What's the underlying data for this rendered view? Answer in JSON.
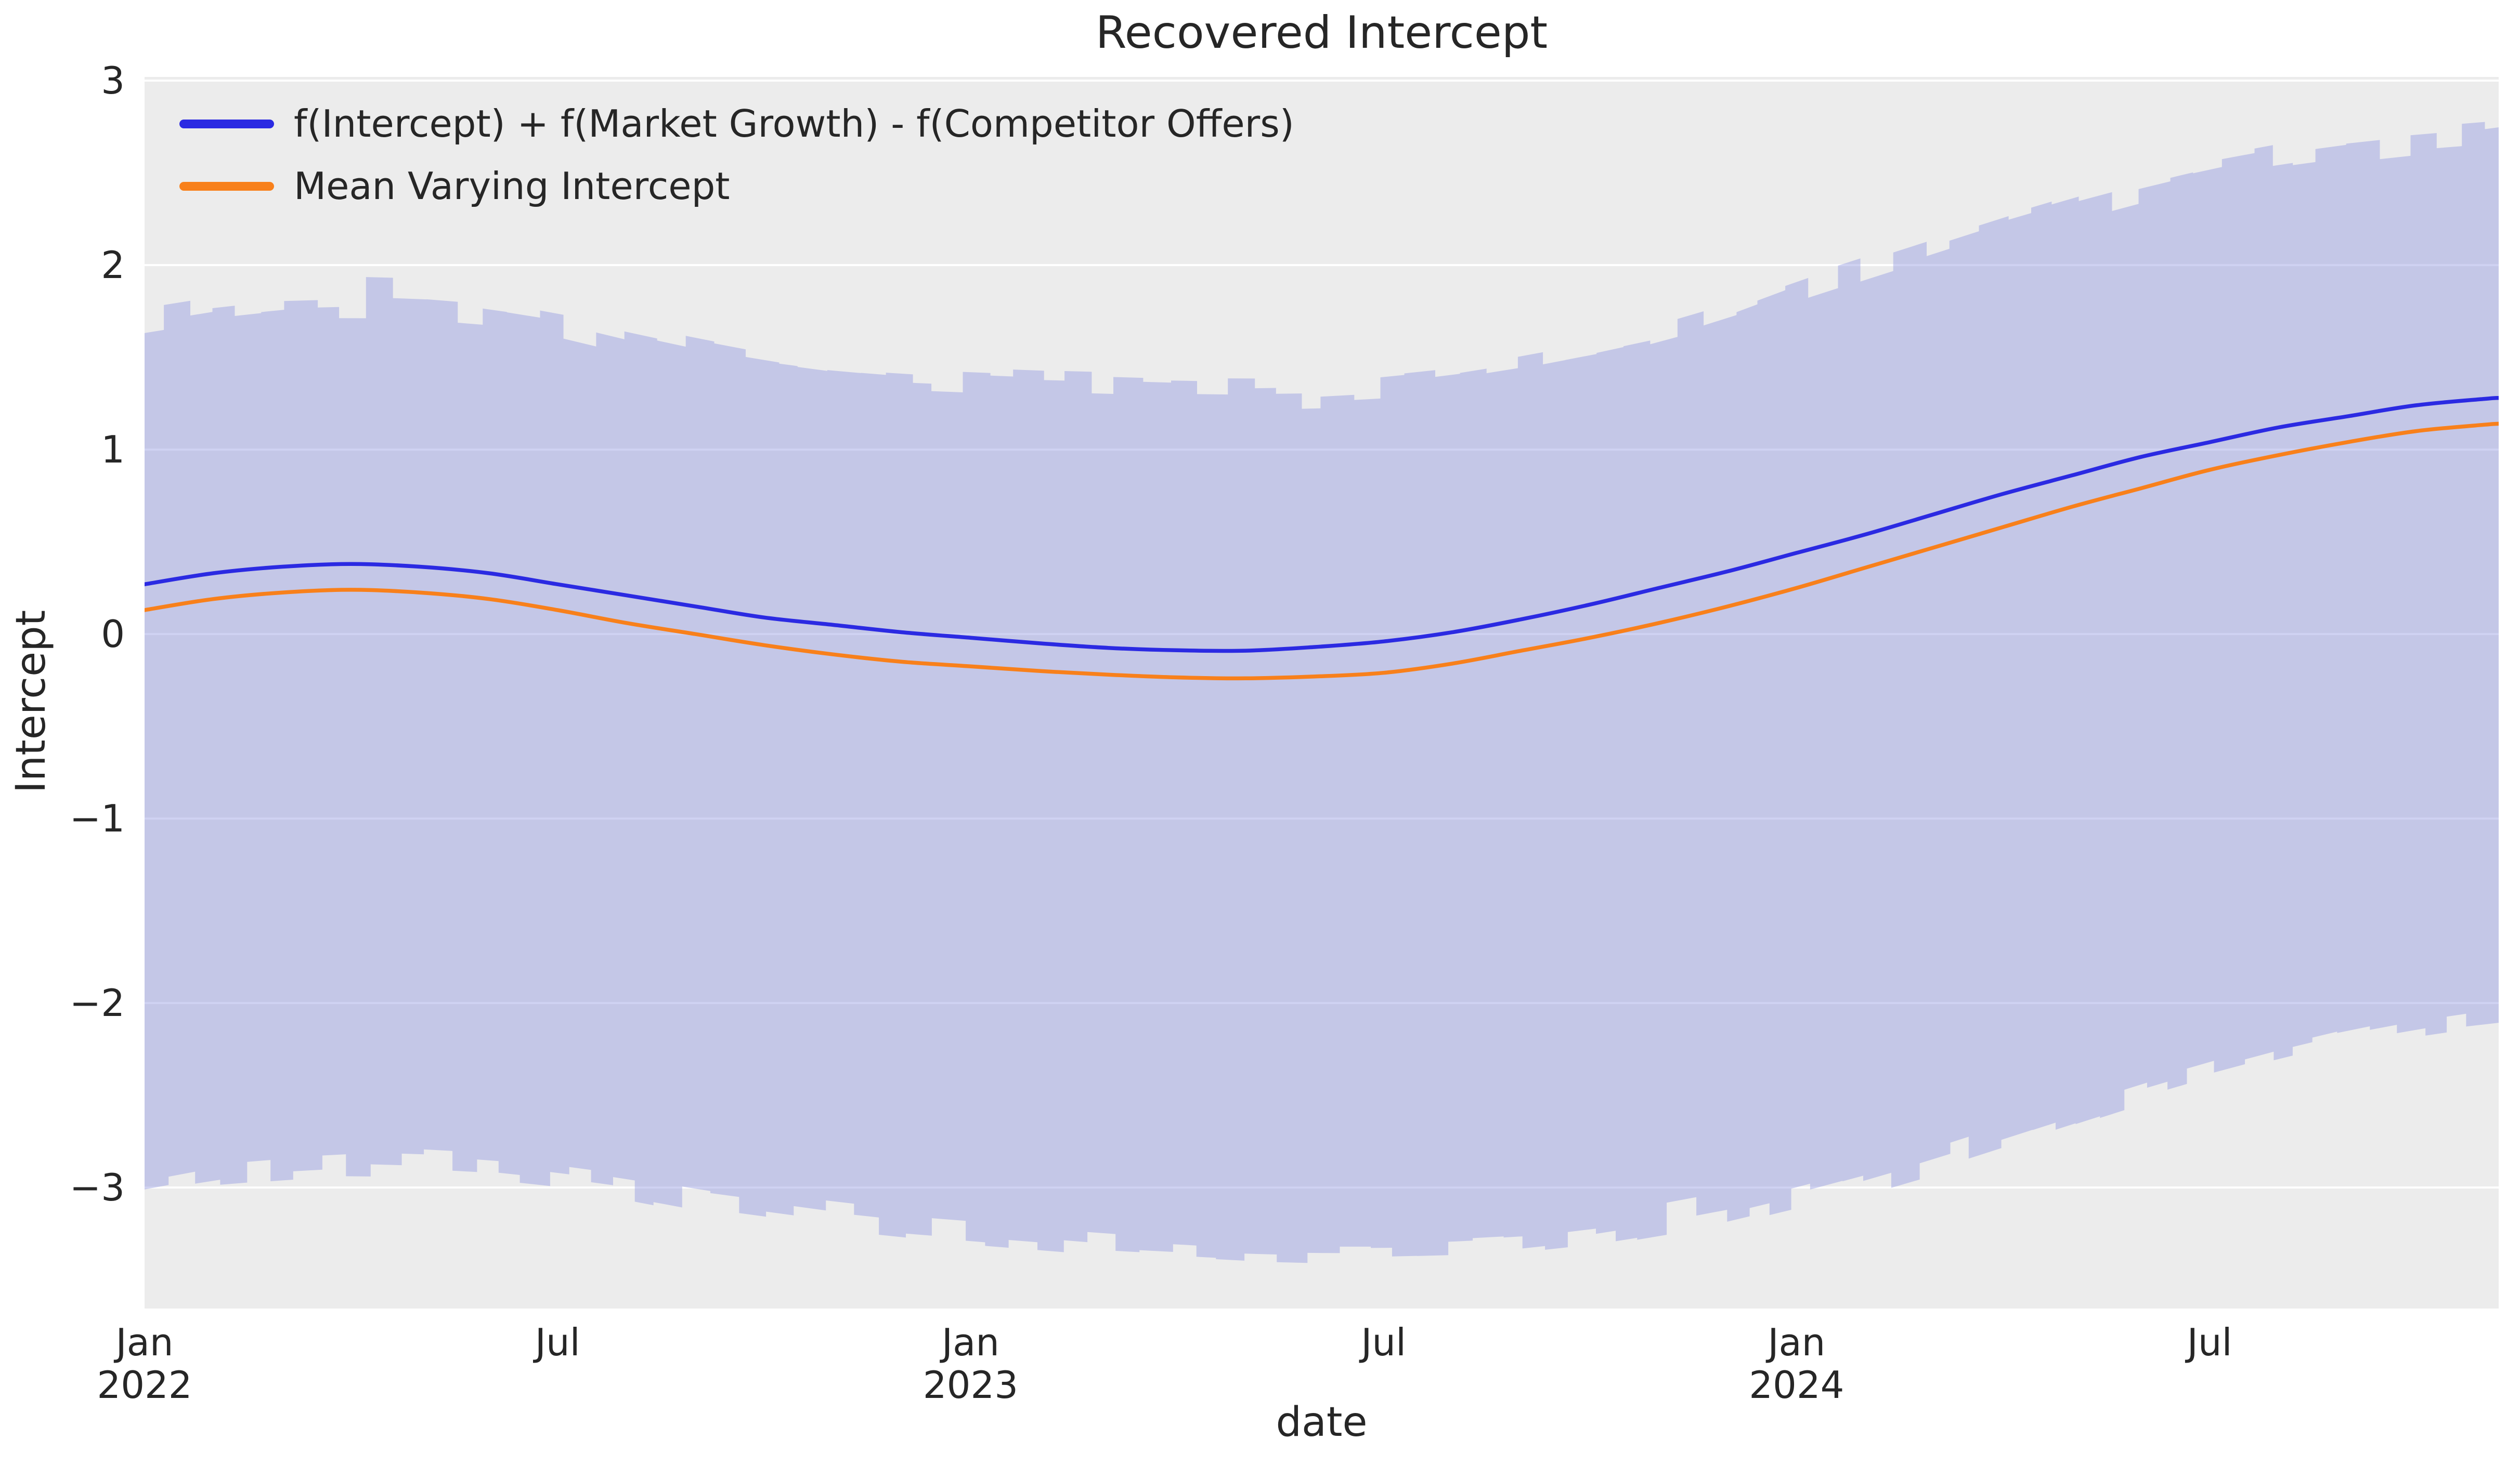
{
  "title": "Recovered Intercept",
  "axes": {
    "xlabel": "date",
    "ylabel": "Intercept",
    "y_tick_labels": [
      "3",
      "2",
      "1",
      "0",
      "−1",
      "−2",
      "−3"
    ],
    "x_tick_labels": [
      {
        "line1": "Jan",
        "line2": "2022"
      },
      {
        "line1": "Jul",
        "line2": ""
      },
      {
        "line1": "Jan",
        "line2": "2023"
      },
      {
        "line1": "Jul",
        "line2": ""
      },
      {
        "line1": "Jan",
        "line2": "2024"
      },
      {
        "line1": "Jul",
        "line2": ""
      }
    ]
  },
  "legend": {
    "items": [
      {
        "label": "f(Intercept) + f(Market Growth) - f(Competitor Offers)",
        "color": "#2b2ae2"
      },
      {
        "label": "Mean Varying Intercept",
        "color": "#f8801b"
      }
    ]
  },
  "colors": {
    "figure_background": "#ffffff",
    "axes_background": "#ececec",
    "gridline": "#ffffff",
    "band": "#8c94e1",
    "band_alpha": 0.42,
    "blue_line": "#2b2ae2",
    "orange_line": "#f8801b",
    "text": "#262626"
  },
  "chart_data": {
    "type": "line",
    "title": "Recovered Intercept",
    "xlabel": "date",
    "ylabel": "Intercept",
    "x_unit": "months since Jan 2022",
    "x": [
      0,
      1,
      2,
      3,
      4,
      5,
      6,
      7,
      8,
      9,
      10,
      11,
      12,
      13,
      14,
      15,
      16,
      17,
      18,
      19,
      20,
      21,
      22,
      23,
      24,
      25,
      26,
      27,
      28,
      29,
      30,
      31,
      32,
      33,
      34,
      34.2
    ],
    "series": [
      {
        "name": "f(Intercept) + f(Market Growth) - f(Competitor Offers)",
        "color": "#2b2ae2",
        "values": [
          0.27,
          0.33,
          0.365,
          0.38,
          0.365,
          0.33,
          0.27,
          0.21,
          0.15,
          0.09,
          0.05,
          0.01,
          -0.02,
          -0.05,
          -0.075,
          -0.088,
          -0.09,
          -0.07,
          -0.04,
          0.01,
          0.08,
          0.16,
          0.25,
          0.34,
          0.44,
          0.54,
          0.65,
          0.76,
          0.86,
          0.96,
          1.04,
          1.12,
          1.18,
          1.24,
          1.275,
          1.28
        ]
      },
      {
        "name": "Mean Varying Intercept",
        "color": "#f8801b",
        "values": [
          0.13,
          0.19,
          0.225,
          0.24,
          0.225,
          0.19,
          0.13,
          0.06,
          0.0,
          -0.06,
          -0.11,
          -0.15,
          -0.175,
          -0.2,
          -0.22,
          -0.235,
          -0.24,
          -0.23,
          -0.21,
          -0.16,
          -0.09,
          -0.02,
          0.06,
          0.15,
          0.25,
          0.36,
          0.47,
          0.58,
          0.69,
          0.79,
          0.89,
          0.97,
          1.04,
          1.1,
          1.135,
          1.14
        ]
      }
    ],
    "band": {
      "name": "posterior credible interval",
      "color": "#8c94e1",
      "alpha": 0.42,
      "upper": [
        1.7,
        1.76,
        1.8,
        1.81,
        1.8,
        1.77,
        1.71,
        1.62,
        1.54,
        1.47,
        1.42,
        1.39,
        1.375,
        1.36,
        1.35,
        1.34,
        1.335,
        1.34,
        1.36,
        1.4,
        1.46,
        1.53,
        1.61,
        1.72,
        1.86,
        1.98,
        2.1,
        2.22,
        2.33,
        2.43,
        2.52,
        2.59,
        2.64,
        2.68,
        2.71,
        2.72
      ],
      "lower": [
        -3.0,
        -2.93,
        -2.9,
        -2.88,
        -2.89,
        -2.91,
        -2.95,
        -3.0,
        -3.07,
        -3.12,
        -3.17,
        -3.21,
        -3.24,
        -3.27,
        -3.3,
        -3.32,
        -3.34,
        -3.35,
        -3.35,
        -3.34,
        -3.32,
        -3.28,
        -3.22,
        -3.15,
        -3.06,
        -2.96,
        -2.85,
        -2.73,
        -2.61,
        -2.49,
        -2.38,
        -2.28,
        -2.19,
        -2.12,
        -2.065,
        -2.06
      ]
    },
    "xlim_months": [
      0,
      34.2
    ],
    "ylim": [
      -3.656,
      3.02
    ],
    "x_ticks_months": [
      0,
      6,
      12,
      18,
      24,
      30
    ],
    "y_ticks": [
      3,
      2,
      1,
      0,
      -1,
      -2,
      -3
    ],
    "grid": "horizontal-only",
    "legend_position": "upper left",
    "band_edge_noise": {
      "seed": 7,
      "segment_months": 0.38,
      "amplitude": 0.07,
      "spike_chance": 0.18,
      "spike_amplitude": 0.11
    }
  }
}
